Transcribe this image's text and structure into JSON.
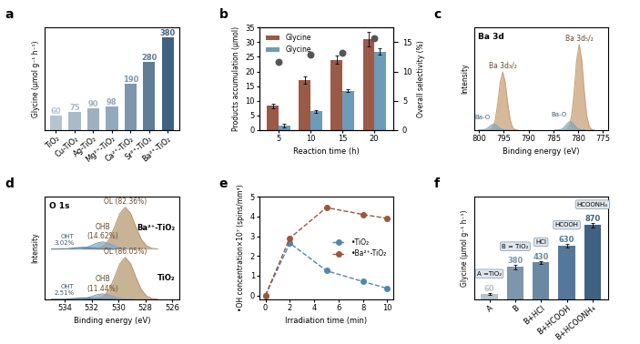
{
  "chart_data": [
    {
      "type": "bar",
      "title": "a",
      "categories": [
        "TiO₂",
        "Cu-TiO₂",
        "Ag-TiO₂",
        "Mg²⁺-TiO₂",
        "Ca²⁺-TiO₂",
        "Sr²⁺-TiO₂",
        "Ba²⁺-TiO₂"
      ],
      "values": [
        60,
        75,
        90,
        98,
        190,
        280,
        380
      ],
      "colors": [
        "#b4c3cf",
        "#a9bac8",
        "#9eb1c1",
        "#93a8ba",
        "#7d96ab",
        "#5f7d96",
        "#3f6282"
      ],
      "y_label": "Glycine (μmol g⁻¹ h⁻¹)",
      "ylim": [
        0,
        420
      ],
      "data_labels": true,
      "tick_labels": "x"
    },
    {
      "type": "bar",
      "title": "b",
      "categories": [
        "5",
        "10",
        "15",
        "20"
      ],
      "x_label": "Reaction time (h)",
      "y_label": "Products accumulation (μmol)",
      "y2_label": "Overall selectivity (%)",
      "ylim": [
        0,
        35
      ],
      "yticks": [
        0,
        5,
        10,
        15,
        20,
        25,
        30,
        35
      ],
      "y2lim": [
        0,
        17.5
      ],
      "y2ticks": [
        0,
        5,
        10,
        15
      ],
      "legend": "upper left",
      "series": [
        {
          "name": "Glycine",
          "color": "#9a5a48",
          "values": [
            8.3,
            17,
            24,
            31
          ],
          "errors": [
            0.8,
            1.2,
            1.5,
            2.5
          ]
        },
        {
          "name": "Glycine",
          "color": "#6e9bb8",
          "values": [
            1.5,
            6.4,
            13.4,
            26.8
          ],
          "errors": [
            0.5,
            0.4,
            0.4,
            1.0
          ]
        },
        {
          "type": "scatter",
          "axis": "y2",
          "color": "#555555",
          "marker": "o",
          "values": [
            11.6,
            12.9,
            13.2,
            15.6
          ]
        }
      ]
    },
    {
      "type": "area",
      "title": "c",
      "heading": "Ba 3d",
      "x_label": "Binding energy (eV)",
      "y_label": "Intensity",
      "xlim": [
        801,
        774
      ],
      "xticks": [
        800,
        795,
        790,
        785,
        780,
        775
      ],
      "ylim": [
        0,
        1.2
      ],
      "tick_labels": "x",
      "spectra": [
        {
          "components": [
            {
              "label": "Ba 3d₃/₂",
              "color": "#c9a27a",
              "x": [
                792.2,
                792.7,
                793.2,
                793.7,
                794.2,
                794.7,
                795.2,
                795.7,
                796.2,
                796.7,
                797.2,
                797.7,
                798.2
              ],
              "y": [
                0.001,
                0.005,
                0.03,
                0.117,
                0.311,
                0.56,
                0.68,
                0.56,
                0.311,
                0.117,
                0.03,
                0.005,
                0.001
              ]
            },
            {
              "label": "Ba 3d₅/₂",
              "color": "#c9a27a",
              "x": [
                776.8,
                777.3,
                777.8,
                778.3,
                778.8,
                779.3,
                779.8,
                780.3,
                780.8,
                781.3,
                781.8,
                782.3,
                782.8
              ],
              "y": [
                0.001,
                0.008,
                0.044,
                0.172,
                0.458,
                0.823,
                1.0,
                0.823,
                0.458,
                0.172,
                0.044,
                0.008,
                0.001
              ]
            },
            {
              "label": "Ba-O",
              "color": "#7fa8c4",
              "x": [
                794.0,
                794.5,
                795.0,
                795.5,
                796.0,
                796.5,
                797.0,
                797.5,
                798.0,
                798.5,
                799.0,
                799.5,
                800.0
              ],
              "y": [
                0,
                0.001,
                0.003,
                0.012,
                0.032,
                0.058,
                0.07,
                0.058,
                0.032,
                0.012,
                0.003,
                0.001,
                0
              ]
            },
            {
              "label": "Ba-O",
              "color": "#7fa8c4",
              "x": [
                778.6,
                779.1,
                779.6,
                780.1,
                780.6,
                781.1,
                781.6,
                782.1,
                782.6,
                783.1,
                783.6,
                784.1,
                784.6
              ],
              "y": [
                0,
                0.001,
                0.004,
                0.017,
                0.046,
                0.082,
                0.1,
                0.082,
                0.046,
                0.017,
                0.004,
                0.001,
                0
              ]
            }
          ]
        }
      ]
    },
    {
      "type": "area",
      "title": "d",
      "heading": "O 1s",
      "x_label": "Binding energy (eV)",
      "y_label": "Intensity",
      "xlim": [
        535.5,
        525.5
      ],
      "xticks": [
        534,
        532,
        530,
        528,
        526
      ],
      "ylim": [
        0,
        2.45
      ],
      "tick_labels": "x",
      "spectra": [
        {
          "name": "TiO₂",
          "components": [
            {
              "label": "OL (86.05%)",
              "color": "#b89a72",
              "x": [
                527.1,
                527.5,
                527.9,
                528.3,
                528.7,
                529.1,
                529.5,
                529.9,
                530.3,
                530.7,
                531.1,
                531.5,
                531.9
              ],
              "y": [
                0.003,
                0.017,
                0.073,
                0.23,
                0.52,
                0.849,
                1.0,
                0.849,
                0.52,
                0.23,
                0.073,
                0.017,
                0.003
              ]
            },
            {
              "label": "OHB\n(11.44%)",
              "color": "#7fa8c4",
              "x": [
                528.8,
                529.2,
                529.6,
                530.0,
                530.4,
                530.8,
                531.2,
                531.6,
                532.0,
                532.4,
                532.8,
                533.2,
                533.6
              ],
              "y": [
                0,
                0.002,
                0.009,
                0.03,
                0.068,
                0.11,
                0.13,
                0.11,
                0.068,
                0.03,
                0.009,
                0.002,
                0
              ]
            },
            {
              "label": "OHT\n2.51%",
              "color": "#5d7f99",
              "x": [
                530.2,
                530.6,
                531.0,
                531.4,
                531.8,
                532.2,
                532.6,
                533.0,
                533.4,
                533.8,
                534.2,
                534.6,
                535.0
              ],
              "y": [
                0,
                0.001,
                0.002,
                0.007,
                0.017,
                0.027,
                0.032,
                0.027,
                0.017,
                0.007,
                0.002,
                0.001,
                0
              ]
            }
          ]
        },
        {
          "name": "Ba²⁺-TiO₂",
          "components": [
            {
              "label": "OL (82.36%)",
              "color": "#b89a72",
              "x": [
                527.1,
                527.5,
                527.9,
                528.3,
                528.7,
                529.1,
                529.5,
                529.9,
                530.3,
                530.7,
                531.1,
                531.5,
                531.9
              ],
              "y": [
                0.003,
                0.017,
                0.073,
                0.23,
                0.52,
                0.849,
                1.0,
                0.849,
                0.52,
                0.23,
                0.073,
                0.017,
                0.003
              ]
            },
            {
              "label": "OHB\n(14.62%)",
              "color": "#7fa8c4",
              "x": [
                528.8,
                529.2,
                529.6,
                530.0,
                530.4,
                530.8,
                531.2,
                531.6,
                532.0,
                532.4,
                532.8,
                533.2,
                533.6
              ],
              "y": [
                0.001,
                0.003,
                0.012,
                0.039,
                0.088,
                0.144,
                0.17,
                0.144,
                0.088,
                0.039,
                0.012,
                0.003,
                0.001
              ]
            },
            {
              "label": "OHT\n3.02%",
              "color": "#5d7f99",
              "x": [
                530.2,
                530.6,
                531.0,
                531.4,
                531.8,
                532.2,
                532.6,
                533.0,
                533.4,
                533.8,
                534.2,
                534.6,
                535.0
              ],
              "y": [
                0,
                0.001,
                0.003,
                0.009,
                0.021,
                0.034,
                0.04,
                0.034,
                0.021,
                0.009,
                0.003,
                0.001,
                0
              ]
            }
          ]
        }
      ]
    },
    {
      "type": "line",
      "title": "e",
      "x_label": "Irradiation time (min)",
      "y_label": "•OH concentration×10⁷ (spins/mm³)",
      "x": [
        0,
        2,
        5,
        8,
        10
      ],
      "xlim": [
        -0.5,
        10.5
      ],
      "xticks": [
        0,
        2,
        4,
        6,
        8,
        10
      ],
      "ylim": [
        -0.2,
        5
      ],
      "yticks": [
        0,
        1,
        2,
        3,
        4,
        5
      ],
      "legend": "center right",
      "series": [
        {
          "name": "•TiO₂",
          "color": "#4f86b3",
          "marker": "o",
          "line_style": "dashed",
          "values": [
            0,
            2.65,
            1.25,
            0.7,
            0.35
          ]
        },
        {
          "name": "•Ba²⁺-TiO₂",
          "color": "#a0553a",
          "marker": "o",
          "line_style": "dashed",
          "values": [
            0,
            2.9,
            4.45,
            4.1,
            3.9
          ]
        }
      ]
    },
    {
      "type": "bar",
      "title": "f",
      "categories": [
        "A",
        "B",
        "B+HCl",
        "B+HCOOH",
        "B+HCOONH₄"
      ],
      "values": [
        60,
        380,
        430,
        630,
        870
      ],
      "errors": [
        10,
        25,
        20,
        20,
        25
      ],
      "colors": [
        "#b4c3cf",
        "#7d96ab",
        "#6a88a1",
        "#55789a",
        "#3f6282"
      ],
      "y_label": "Glycine (μmol g⁻¹ h⁻¹)",
      "ylim": [
        0,
        1200
      ],
      "data_labels": true,
      "tick_labels": "x",
      "annotations": [
        {
          "text": "A =TiO₂",
          "category": "A"
        },
        {
          "text": "B = TiO₂",
          "category": "B"
        },
        {
          "text": "HCl",
          "category": "B+HCl"
        },
        {
          "text": "HCOOH",
          "category": "B+HCOOH"
        },
        {
          "text": "HCOONH₄",
          "category": "B+HCOONH₄"
        }
      ]
    }
  ]
}
